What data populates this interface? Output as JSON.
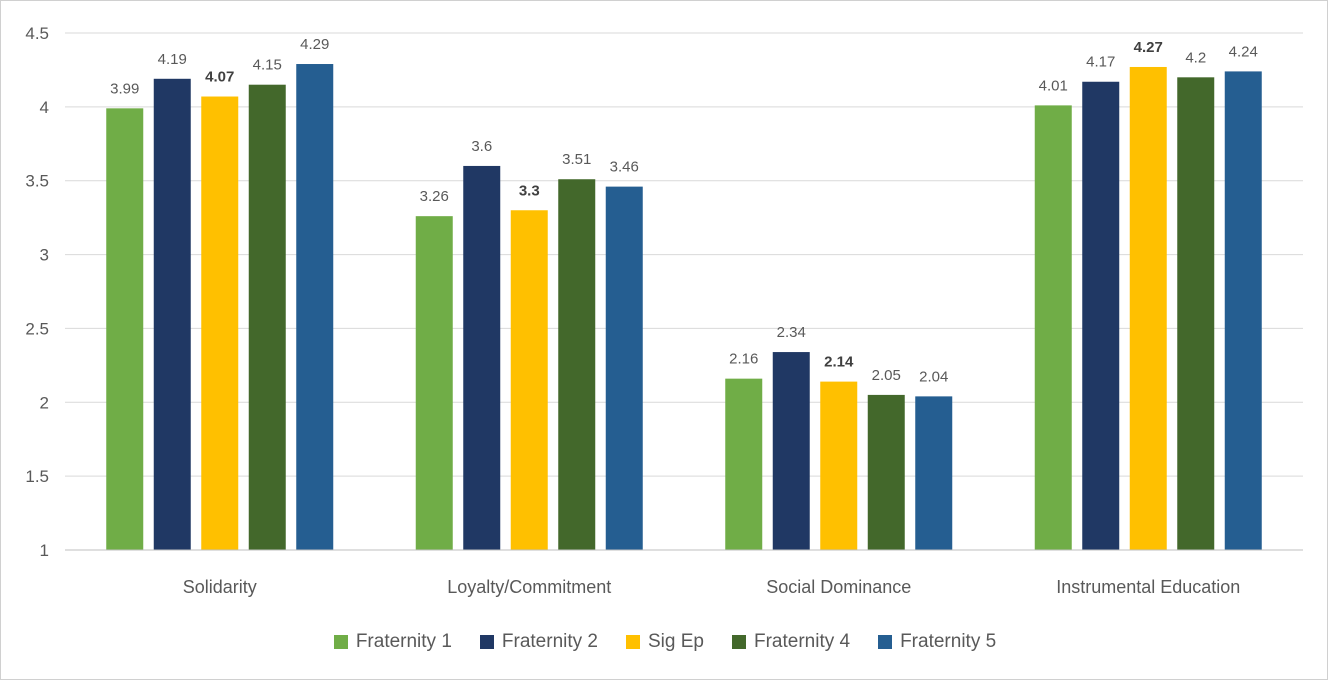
{
  "chart_data": {
    "type": "bar",
    "categories": [
      "Solidarity",
      "Loyalty/Commitment",
      "Social Dominance",
      "Instrumental Education"
    ],
    "series": [
      {
        "name": "Fraternity 1",
        "color": "#70AD47",
        "values": [
          3.99,
          3.26,
          2.16,
          4.01
        ],
        "labels": [
          "3.99",
          "3.26",
          "2.16",
          "4.01"
        ],
        "bold_labels": false
      },
      {
        "name": "Fraternity 2",
        "color": "#203864",
        "values": [
          4.19,
          3.6,
          2.34,
          4.17
        ],
        "labels": [
          "4.19",
          "3.6",
          "2.34",
          "4.17"
        ],
        "bold_labels": false
      },
      {
        "name": "Sig Ep",
        "color": "#FFC000",
        "values": [
          4.07,
          3.3,
          2.14,
          4.27
        ],
        "labels": [
          "4.07",
          "3.3",
          "2.14",
          "4.27"
        ],
        "bold_labels": true
      },
      {
        "name": "Fraternity 4",
        "color": "#43682B",
        "values": [
          4.15,
          3.51,
          2.05,
          4.2
        ],
        "labels": [
          "4.15",
          "3.51",
          "2.05",
          "4.2"
        ],
        "bold_labels": false
      },
      {
        "name": "Fraternity 5",
        "color": "#255E91",
        "values": [
          4.29,
          3.46,
          2.04,
          4.24
        ],
        "labels": [
          "4.29",
          "3.46",
          "2.04",
          "4.24"
        ],
        "bold_labels": false
      }
    ],
    "ylim": [
      1,
      4.5
    ],
    "yticks": [
      1,
      1.5,
      2,
      2.5,
      3,
      3.5,
      4,
      4.5
    ],
    "ytick_labels": [
      "1",
      "1.5",
      "2",
      "2.5",
      "3",
      "3.5",
      "4",
      "4.5"
    ],
    "grid": true,
    "legend_position": "bottom",
    "title": "",
    "xlabel": "",
    "ylabel": ""
  }
}
